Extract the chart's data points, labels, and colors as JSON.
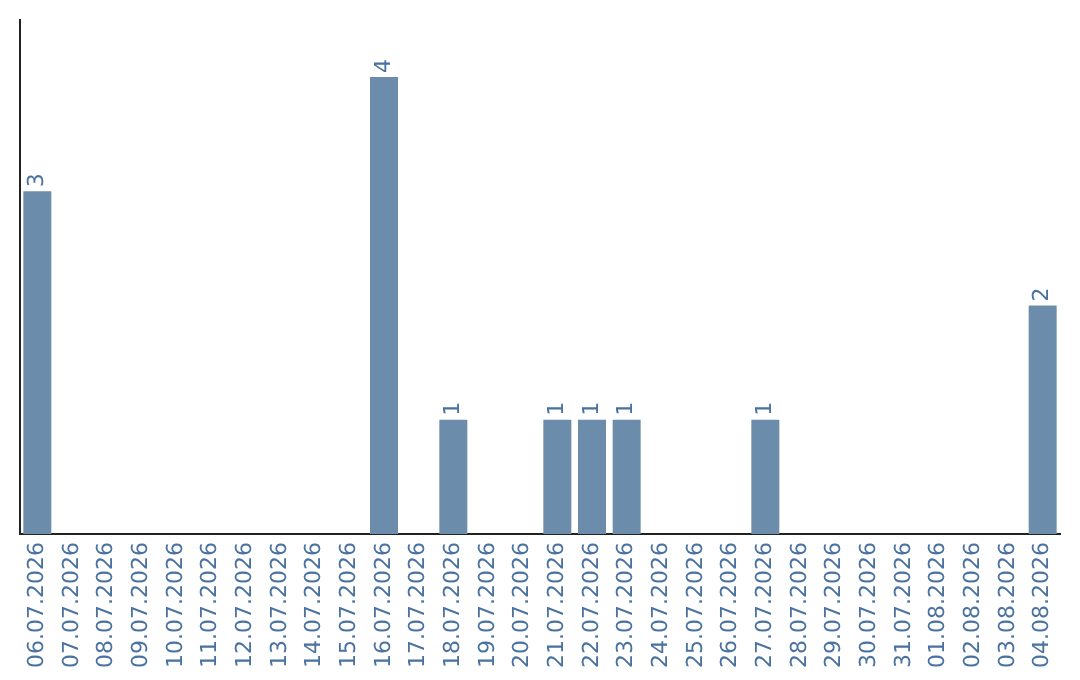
{
  "chart_data": {
    "type": "bar",
    "categories": [
      "06.07.2026",
      "07.07.2026",
      "08.07.2026",
      "09.07.2026",
      "10.07.2026",
      "11.07.2026",
      "12.07.2026",
      "13.07.2026",
      "14.07.2026",
      "15.07.2026",
      "16.07.2026",
      "17.07.2026",
      "18.07.2026",
      "19.07.2026",
      "20.07.2026",
      "21.07.2026",
      "22.07.2026",
      "23.07.2026",
      "24.07.2026",
      "25.07.2026",
      "26.07.2026",
      "27.07.2026",
      "28.07.2026",
      "29.07.2026",
      "30.07.2026",
      "31.07.2026",
      "01.08.2026",
      "02.08.2026",
      "03.08.2026",
      "04.08.2026"
    ],
    "values": [
      3,
      0,
      0,
      0,
      0,
      0,
      0,
      0,
      0,
      0,
      4,
      0,
      1,
      0,
      0,
      1,
      1,
      1,
      0,
      0,
      0,
      1,
      0,
      0,
      0,
      0,
      0,
      0,
      0,
      2
    ],
    "value_labels": [
      "3",
      null,
      null,
      null,
      null,
      null,
      null,
      null,
      null,
      null,
      "4",
      null,
      "1",
      null,
      null,
      "1",
      "1",
      "1",
      null,
      null,
      null,
      "1",
      null,
      null,
      null,
      null,
      null,
      null,
      null,
      "2"
    ],
    "color": "#6b8cab",
    "grid": false,
    "legend": false,
    "tick_labels": "x"
  }
}
